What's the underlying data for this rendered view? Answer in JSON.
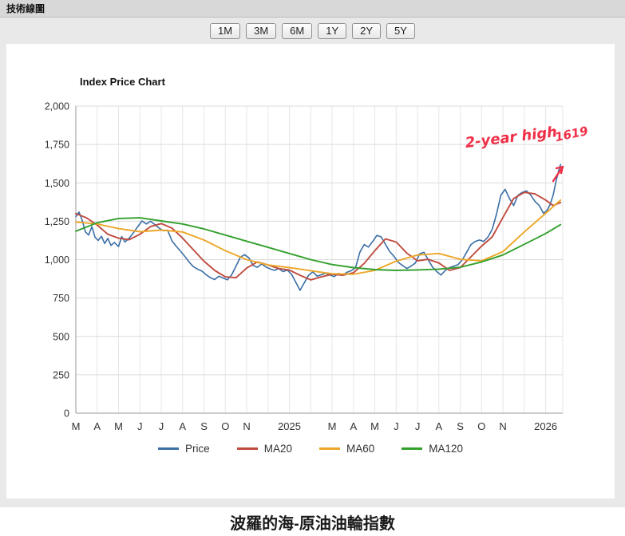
{
  "header": {
    "title": "技術線圖"
  },
  "range_buttons": [
    {
      "label": "1M"
    },
    {
      "label": "3M"
    },
    {
      "label": "6M"
    },
    {
      "label": "1Y"
    },
    {
      "label": "2Y"
    },
    {
      "label": "5Y"
    }
  ],
  "footer": {
    "title": "波羅的海-原油油輪指數"
  },
  "chart_data": {
    "type": "line",
    "title": "Index Price Chart",
    "ylim": [
      0,
      2000
    ],
    "y_ticks": [
      0,
      250,
      500,
      750,
      1000,
      1250,
      1500,
      1750,
      2000
    ],
    "x_unit": "months since 2024-03",
    "x_range": [
      0,
      22.8
    ],
    "grid": true,
    "legend_position": "bottom",
    "x_ticks": [
      {
        "pos": 0,
        "label": "M"
      },
      {
        "pos": 1,
        "label": "A"
      },
      {
        "pos": 2,
        "label": "M"
      },
      {
        "pos": 3,
        "label": "J"
      },
      {
        "pos": 4,
        "label": "J"
      },
      {
        "pos": 5,
        "label": "A"
      },
      {
        "pos": 6,
        "label": "S"
      },
      {
        "pos": 7,
        "label": "O"
      },
      {
        "pos": 8,
        "label": "N"
      },
      {
        "pos": 10,
        "label": "2025"
      },
      {
        "pos": 12,
        "label": "M"
      },
      {
        "pos": 13,
        "label": "A"
      },
      {
        "pos": 14,
        "label": "M"
      },
      {
        "pos": 15,
        "label": "J"
      },
      {
        "pos": 16,
        "label": "J"
      },
      {
        "pos": 17,
        "label": "A"
      },
      {
        "pos": 18,
        "label": "S"
      },
      {
        "pos": 19,
        "label": "O"
      },
      {
        "pos": 20,
        "label": "N"
      },
      {
        "pos": 22,
        "label": "2026"
      }
    ],
    "annotation": {
      "text": "2-year high",
      "value_label": "1619",
      "color": "#ef3048"
    },
    "series": [
      {
        "name": "Price",
        "color": "#3a6ea5",
        "points": [
          [
            0,
            1280
          ],
          [
            0.15,
            1310
          ],
          [
            0.3,
            1255
          ],
          [
            0.45,
            1180
          ],
          [
            0.6,
            1160
          ],
          [
            0.75,
            1215
          ],
          [
            0.9,
            1145
          ],
          [
            1.05,
            1125
          ],
          [
            1.2,
            1152
          ],
          [
            1.35,
            1105
          ],
          [
            1.5,
            1138
          ],
          [
            1.65,
            1092
          ],
          [
            1.8,
            1112
          ],
          [
            2,
            1085
          ],
          [
            2.15,
            1150
          ],
          [
            2.3,
            1115
          ],
          [
            2.5,
            1140
          ],
          [
            2.7,
            1175
          ],
          [
            2.9,
            1215
          ],
          [
            3.1,
            1252
          ],
          [
            3.3,
            1232
          ],
          [
            3.5,
            1250
          ],
          [
            3.7,
            1228
          ],
          [
            3.9,
            1205
          ],
          [
            4.1,
            1188
          ],
          [
            4.3,
            1192
          ],
          [
            4.5,
            1122
          ],
          [
            4.7,
            1088
          ],
          [
            4.9,
            1055
          ],
          [
            5.1,
            1022
          ],
          [
            5.3,
            985
          ],
          [
            5.5,
            955
          ],
          [
            5.7,
            938
          ],
          [
            5.9,
            925
          ],
          [
            6.1,
            902
          ],
          [
            6.3,
            882
          ],
          [
            6.5,
            870
          ],
          [
            6.7,
            892
          ],
          [
            6.9,
            880
          ],
          [
            7.1,
            868
          ],
          [
            7.3,
            902
          ],
          [
            7.5,
            958
          ],
          [
            7.7,
            1015
          ],
          [
            7.9,
            1032
          ],
          [
            8.1,
            1012
          ],
          [
            8.3,
            962
          ],
          [
            8.5,
            950
          ],
          [
            8.7,
            972
          ],
          [
            8.9,
            952
          ],
          [
            9.1,
            940
          ],
          [
            9.3,
            930
          ],
          [
            9.5,
            942
          ],
          [
            9.7,
            922
          ],
          [
            9.9,
            932
          ],
          [
            10.1,
            905
          ],
          [
            10.3,
            852
          ],
          [
            10.5,
            800
          ],
          [
            10.7,
            850
          ],
          [
            10.9,
            898
          ],
          [
            11.1,
            920
          ],
          [
            11.3,
            892
          ],
          [
            11.5,
            902
          ],
          [
            11.7,
            912
          ],
          [
            11.9,
            900
          ],
          [
            12.1,
            890
          ],
          [
            12.3,
            910
          ],
          [
            12.5,
            900
          ],
          [
            12.7,
            918
          ],
          [
            12.9,
            928
          ],
          [
            13.1,
            948
          ],
          [
            13.3,
            1048
          ],
          [
            13.5,
            1098
          ],
          [
            13.7,
            1082
          ],
          [
            13.9,
            1118
          ],
          [
            14.1,
            1158
          ],
          [
            14.3,
            1148
          ],
          [
            14.5,
            1100
          ],
          [
            14.7,
            1052
          ],
          [
            14.9,
            1022
          ],
          [
            15.1,
            982
          ],
          [
            15.3,
            962
          ],
          [
            15.5,
            942
          ],
          [
            15.7,
            958
          ],
          [
            15.9,
            978
          ],
          [
            16.1,
            1038
          ],
          [
            16.3,
            1048
          ],
          [
            16.5,
            1000
          ],
          [
            16.7,
            952
          ],
          [
            16.9,
            922
          ],
          [
            17.1,
            900
          ],
          [
            17.3,
            930
          ],
          [
            17.5,
            948
          ],
          [
            17.7,
            958
          ],
          [
            17.9,
            968
          ],
          [
            18.1,
            1000
          ],
          [
            18.3,
            1048
          ],
          [
            18.5,
            1098
          ],
          [
            18.7,
            1118
          ],
          [
            18.9,
            1128
          ],
          [
            19.1,
            1118
          ],
          [
            19.3,
            1148
          ],
          [
            19.5,
            1198
          ],
          [
            19.7,
            1298
          ],
          [
            19.9,
            1418
          ],
          [
            20.1,
            1458
          ],
          [
            20.3,
            1400
          ],
          [
            20.5,
            1352
          ],
          [
            20.7,
            1418
          ],
          [
            20.9,
            1438
          ],
          [
            21.1,
            1448
          ],
          [
            21.3,
            1420
          ],
          [
            21.5,
            1380
          ],
          [
            21.7,
            1352
          ],
          [
            21.9,
            1302
          ],
          [
            22.05,
            1318
          ],
          [
            22.2,
            1355
          ],
          [
            22.35,
            1420
          ],
          [
            22.5,
            1520
          ],
          [
            22.65,
            1600
          ],
          [
            22.7,
            1619
          ]
        ]
      },
      {
        "name": "MA20",
        "color": "#bf4b3f",
        "points": [
          [
            0,
            1300
          ],
          [
            0.5,
            1272
          ],
          [
            1,
            1225
          ],
          [
            1.5,
            1165
          ],
          [
            2,
            1140
          ],
          [
            2.5,
            1130
          ],
          [
            3,
            1165
          ],
          [
            3.5,
            1215
          ],
          [
            4,
            1235
          ],
          [
            4.5,
            1205
          ],
          [
            5,
            1140
          ],
          [
            5.5,
            1065
          ],
          [
            6,
            990
          ],
          [
            6.5,
            930
          ],
          [
            7,
            888
          ],
          [
            7.5,
            882
          ],
          [
            8,
            945
          ],
          [
            8.5,
            985
          ],
          [
            9,
            965
          ],
          [
            9.5,
            942
          ],
          [
            10,
            932
          ],
          [
            10.5,
            898
          ],
          [
            11,
            868
          ],
          [
            11.5,
            888
          ],
          [
            12,
            905
          ],
          [
            12.5,
            898
          ],
          [
            13,
            915
          ],
          [
            13.5,
            975
          ],
          [
            14,
            1058
          ],
          [
            14.5,
            1135
          ],
          [
            15,
            1115
          ],
          [
            15.5,
            1042
          ],
          [
            16,
            992
          ],
          [
            16.5,
            1002
          ],
          [
            17,
            978
          ],
          [
            17.5,
            930
          ],
          [
            18,
            948
          ],
          [
            18.5,
            1018
          ],
          [
            19,
            1088
          ],
          [
            19.5,
            1148
          ],
          [
            20,
            1275
          ],
          [
            20.5,
            1398
          ],
          [
            21,
            1438
          ],
          [
            21.5,
            1428
          ],
          [
            22,
            1388
          ],
          [
            22.35,
            1352
          ],
          [
            22.7,
            1372
          ]
        ]
      },
      {
        "name": "MA60",
        "color": "#eda728",
        "points": [
          [
            0,
            1245
          ],
          [
            1,
            1232
          ],
          [
            2,
            1202
          ],
          [
            3,
            1182
          ],
          [
            4,
            1192
          ],
          [
            5,
            1180
          ],
          [
            6,
            1128
          ],
          [
            7,
            1058
          ],
          [
            8,
            1000
          ],
          [
            9,
            965
          ],
          [
            10,
            948
          ],
          [
            11,
            928
          ],
          [
            12,
            908
          ],
          [
            13,
            905
          ],
          [
            14,
            930
          ],
          [
            15,
            990
          ],
          [
            16,
            1030
          ],
          [
            17,
            1040
          ],
          [
            18,
            1002
          ],
          [
            19,
            992
          ],
          [
            20,
            1052
          ],
          [
            21,
            1180
          ],
          [
            22,
            1302
          ],
          [
            22.7,
            1388
          ]
        ]
      },
      {
        "name": "MA120",
        "color": "#33a02c",
        "points": [
          [
            0,
            1185
          ],
          [
            1,
            1240
          ],
          [
            2,
            1268
          ],
          [
            3,
            1272
          ],
          [
            4,
            1252
          ],
          [
            5,
            1232
          ],
          [
            6,
            1200
          ],
          [
            7,
            1160
          ],
          [
            8,
            1120
          ],
          [
            9,
            1080
          ],
          [
            10,
            1040
          ],
          [
            11,
            1000
          ],
          [
            12,
            968
          ],
          [
            13,
            948
          ],
          [
            14,
            935
          ],
          [
            15,
            930
          ],
          [
            16,
            933
          ],
          [
            17,
            938
          ],
          [
            18,
            950
          ],
          [
            19,
            985
          ],
          [
            20,
            1030
          ],
          [
            21,
            1100
          ],
          [
            22,
            1170
          ],
          [
            22.7,
            1228
          ]
        ]
      }
    ]
  }
}
